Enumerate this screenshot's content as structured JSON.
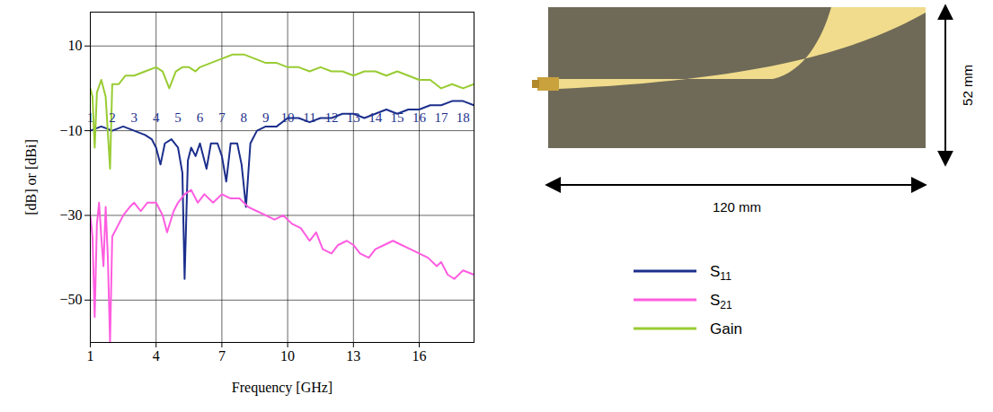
{
  "chart_data": {
    "type": "line",
    "xlabel": "Frequency [GHz]",
    "ylabel": "[dB] or [dBi]",
    "xlim": [
      1,
      18.5
    ],
    "xticks": [
      1,
      4,
      7,
      10,
      13,
      16
    ],
    "ylim": [
      -60,
      18
    ],
    "yticks": [
      -50,
      -30,
      -10,
      10
    ],
    "grid": true,
    "legend": "right",
    "x_annotations": {
      "values": [
        1,
        2,
        3,
        4,
        5,
        6,
        7,
        8,
        9,
        10,
        11,
        12,
        13,
        14,
        15,
        16,
        17,
        18
      ],
      "y": -7
    },
    "series": [
      {
        "name": "S11",
        "color": "#1c2f8c",
        "x": [
          1,
          1.5,
          2,
          2.5,
          3,
          3.5,
          3.8,
          4.0,
          4.2,
          4.4,
          4.7,
          5.0,
          5.2,
          5.3,
          5.45,
          5.6,
          5.8,
          6.0,
          6.3,
          6.5,
          6.8,
          7.0,
          7.2,
          7.4,
          7.7,
          7.9,
          8.1,
          8.3,
          8.6,
          9,
          9.5,
          10,
          10.5,
          11,
          11.5,
          12,
          12.5,
          13,
          13.5,
          14,
          14.5,
          15,
          15.5,
          16,
          16.5,
          17,
          17.5,
          18,
          18.5
        ],
        "values": [
          -10,
          -9,
          -10,
          -9,
          -10,
          -11,
          -12,
          -14,
          -18,
          -13,
          -12,
          -14,
          -20,
          -45,
          -17,
          -14,
          -16,
          -13,
          -19,
          -13,
          -13,
          -16,
          -22,
          -13,
          -13,
          -18,
          -28,
          -13,
          -10,
          -9,
          -9,
          -7,
          -7,
          -8,
          -7,
          -7,
          -6,
          -6,
          -7,
          -6,
          -5,
          -6,
          -5,
          -5,
          -4,
          -4,
          -3,
          -3,
          -4
        ]
      },
      {
        "name": "S21",
        "color": "#ff5ce0",
        "x": [
          1,
          1.1,
          1.2,
          1.3,
          1.4,
          1.5,
          1.6,
          1.7,
          1.8,
          1.9,
          2.0,
          2.2,
          2.5,
          2.8,
          3,
          3.3,
          3.6,
          4,
          4.3,
          4.5,
          4.8,
          5.0,
          5.3,
          5.6,
          5.9,
          6.2,
          6.6,
          7,
          7.4,
          7.8,
          8.2,
          8.6,
          9,
          9.4,
          9.8,
          10.2,
          10.6,
          11,
          11.3,
          11.6,
          12,
          12.3,
          12.7,
          13,
          13.3,
          13.7,
          14,
          14.4,
          14.8,
          15.2,
          15.6,
          16,
          16.4,
          16.8,
          17,
          17.3,
          17.6,
          18,
          18.5
        ],
        "values": [
          -30,
          -35,
          -54,
          -32,
          -27,
          -35,
          -42,
          -28,
          -40,
          -60,
          -35,
          -33,
          -30,
          -28,
          -27,
          -29,
          -27,
          -27,
          -30,
          -34,
          -29,
          -27,
          -25,
          -24,
          -27,
          -25,
          -27,
          -25,
          -26,
          -26,
          -28,
          -29,
          -30,
          -31,
          -30,
          -32,
          -33,
          -36,
          -34,
          -38,
          -39,
          -37,
          -36,
          -37,
          -39,
          -40,
          -38,
          -37,
          -36,
          -37,
          -38,
          -39,
          -40,
          -42,
          -41,
          -44,
          -45,
          -43,
          -44
        ]
      },
      {
        "name": "Gain",
        "color": "#99cc33",
        "x": [
          1,
          1.1,
          1.2,
          1.3,
          1.5,
          1.7,
          1.9,
          2.0,
          2.3,
          2.6,
          3,
          3.5,
          4,
          4.3,
          4.6,
          4.9,
          5.2,
          5.5,
          5.8,
          6,
          6.5,
          7,
          7.5,
          8,
          8.5,
          9,
          9.5,
          10,
          10.5,
          11,
          11.5,
          12,
          12.5,
          13,
          13.5,
          14,
          14.5,
          15,
          15.5,
          16,
          16.5,
          17,
          17.5,
          18,
          18.5
        ],
        "values": [
          0,
          -2,
          -14,
          -1,
          2,
          -2,
          -19,
          1,
          1,
          3,
          3,
          4,
          5,
          4,
          0,
          4,
          5,
          5,
          4,
          5,
          6,
          7,
          8,
          8,
          7,
          6,
          6,
          5,
          5,
          4,
          5,
          4,
          4,
          3,
          4,
          4,
          3,
          4,
          3,
          2,
          2,
          0,
          1,
          0,
          1
        ]
      }
    ],
    "photo": {
      "height_label": "52 mm",
      "width_label": "120 mm"
    }
  }
}
